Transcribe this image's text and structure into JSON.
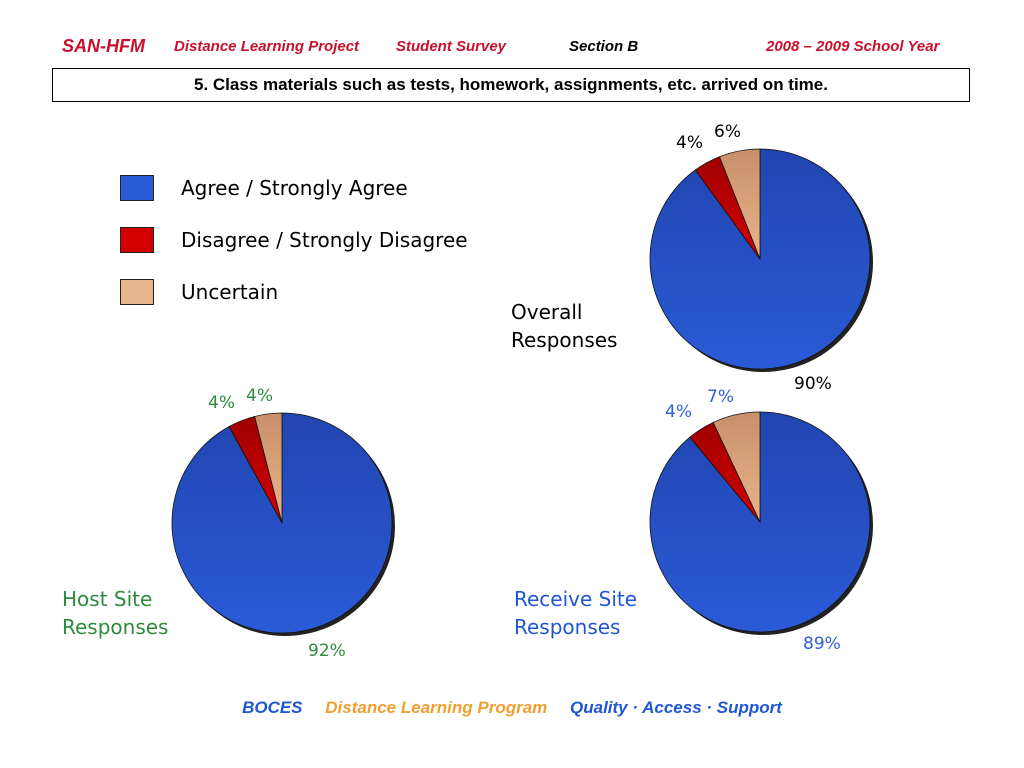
{
  "header": {
    "org": "SAN-HFM",
    "project": "Distance Learning Project",
    "survey": "Student Survey",
    "section": "Section B",
    "year": "2008 – 2009 School Year"
  },
  "question": "5. Class materials such as tests, homework, assignments, etc. arrived on time.",
  "legend": [
    {
      "label": "Agree / Strongly Agree",
      "color": "#2a5bd7"
    },
    {
      "label": "Disagree / Strongly Disagree",
      "color": "#d40000"
    },
    {
      "label": "Uncertain",
      "color": "#e8b48c"
    }
  ],
  "chart_data": [
    {
      "type": "pie",
      "title": "Overall Responses",
      "categories": [
        "Agree / Strongly Agree",
        "Disagree / Strongly Disagree",
        "Uncertain"
      ],
      "values": [
        90,
        4,
        6
      ],
      "labels": [
        "90%",
        "4%",
        "6%"
      ],
      "label_color": "#000000"
    },
    {
      "type": "pie",
      "title": "Host Site Responses",
      "categories": [
        "Agree / Strongly Agree",
        "Disagree / Strongly Disagree",
        "Uncertain"
      ],
      "values": [
        92,
        4,
        4
      ],
      "labels": [
        "92%",
        "4%",
        "4%"
      ],
      "label_color": "#2e8b3e"
    },
    {
      "type": "pie",
      "title": "Receive Site Responses",
      "categories": [
        "Agree / Strongly Agree",
        "Disagree / Strongly Disagree",
        "Uncertain"
      ],
      "values": [
        89,
        4,
        7
      ],
      "labels": [
        "89%",
        "4%",
        "7%"
      ],
      "label_color": "#2f5fd8"
    }
  ],
  "chart_titles": [
    {
      "line1": "Overall",
      "line2": "Responses",
      "color": "#000000"
    },
    {
      "line1": "Host Site",
      "line2": "Responses",
      "color": "#2e8b3e"
    },
    {
      "line1": "Receive Site",
      "line2": "Responses",
      "color": "#1f56d6"
    }
  ],
  "footer": {
    "boces": "BOCES",
    "program": "Distance Learning Program",
    "tagline": "Quality · Access · Support",
    "boces_color": "#1f56d6",
    "program_color": "#f0a030",
    "tagline_color": "#1f56d6"
  }
}
